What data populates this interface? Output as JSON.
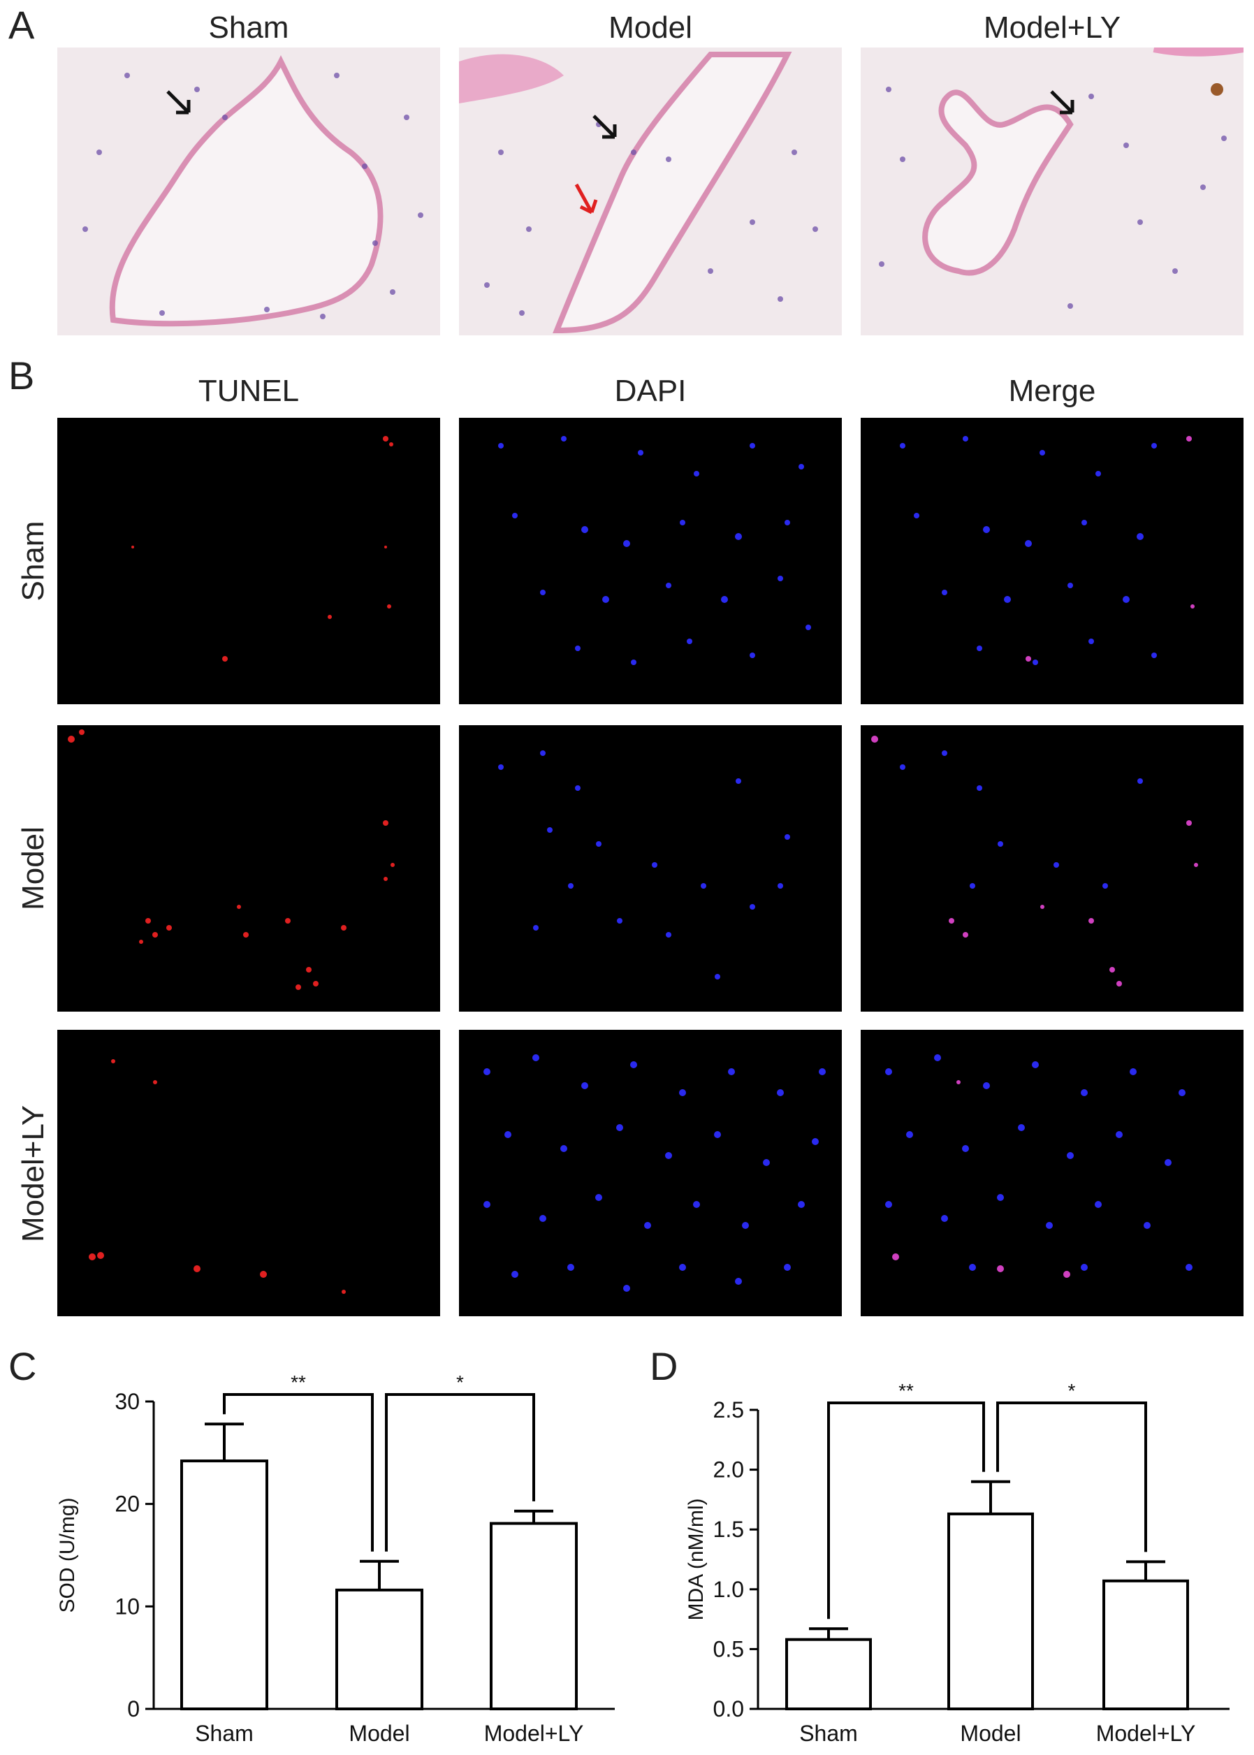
{
  "figure": {
    "panel_labels": [
      "A",
      "B",
      "C",
      "D"
    ],
    "panel_a": {
      "column_titles": [
        "Sham",
        "Model",
        "Model+LY"
      ],
      "arrow_colors": {
        "black": "#111111",
        "red": "#e02020"
      }
    },
    "panel_b": {
      "column_titles": [
        "TUNEL",
        "DAPI",
        "Merge"
      ],
      "row_titles": [
        "Sham",
        "Model",
        "Model+LY"
      ]
    }
  },
  "chart_data": [
    {
      "type": "bar",
      "categories": [
        "Sham",
        "Model",
        "Model+LY"
      ],
      "values": [
        24.2,
        11.6,
        18.1
      ],
      "errors": [
        3.6,
        2.8,
        1.2
      ],
      "ylabel": "SOD (U/mg)",
      "ylim": [
        0,
        30
      ],
      "yticks": [
        0,
        10,
        20,
        30
      ],
      "significance": [
        {
          "from": 0,
          "to": 1,
          "label": "**"
        },
        {
          "from": 1,
          "to": 2,
          "label": "*"
        }
      ],
      "bar_fill": "#ffffff",
      "bar_stroke": "#000000"
    },
    {
      "type": "bar",
      "categories": [
        "Sham",
        "Model",
        "Model+LY"
      ],
      "values": [
        0.58,
        1.63,
        1.07
      ],
      "errors": [
        0.09,
        0.27,
        0.16
      ],
      "ylabel": "MDA (nM/ml)",
      "ylim": [
        0,
        2.5
      ],
      "yticks": [
        "0.0",
        "0.5",
        "1.0",
        "1.5",
        "2.0",
        "2.5"
      ],
      "significance": [
        {
          "from": 0,
          "to": 1,
          "label": "**"
        },
        {
          "from": 1,
          "to": 2,
          "label": "*"
        }
      ],
      "bar_fill": "#ffffff",
      "bar_stroke": "#000000"
    }
  ]
}
